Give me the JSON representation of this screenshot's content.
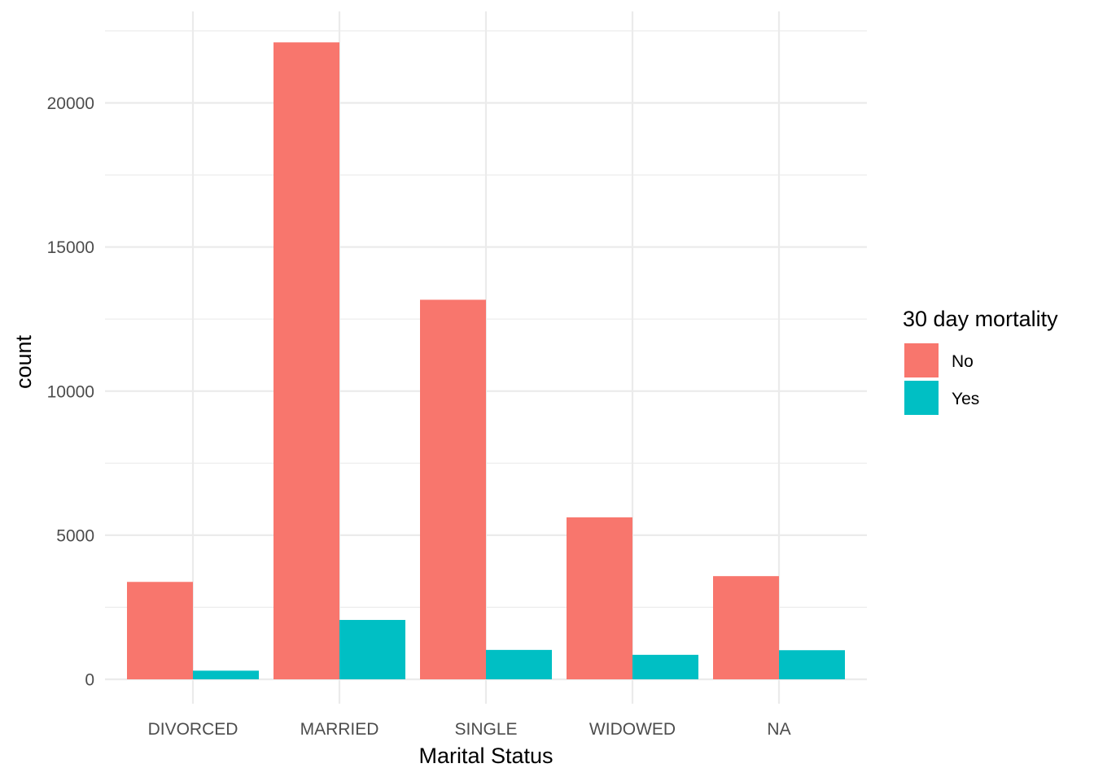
{
  "chart_data": {
    "type": "bar",
    "title": "",
    "xlabel": "Marital Status",
    "ylabel": "count",
    "categories": [
      "DIVORCED",
      "MARRIED",
      "SINGLE",
      "WIDOWED",
      "NA"
    ],
    "series": [
      {
        "name": "No",
        "color": "#F8766D",
        "values": [
          3380,
          22100,
          13170,
          5620,
          3580
        ]
      },
      {
        "name": "Yes",
        "color": "#00BFC4",
        "values": [
          300,
          2060,
          1020,
          850,
          1010
        ]
      }
    ],
    "yticks": [
      0,
      5000,
      10000,
      15000,
      20000
    ],
    "ytick_labels": [
      "0",
      "5000",
      "10000",
      "15000",
      "20000"
    ],
    "ylim": [
      0,
      22700
    ],
    "legend_title": "30 day mortality",
    "legend_position": "right",
    "grid": true
  }
}
